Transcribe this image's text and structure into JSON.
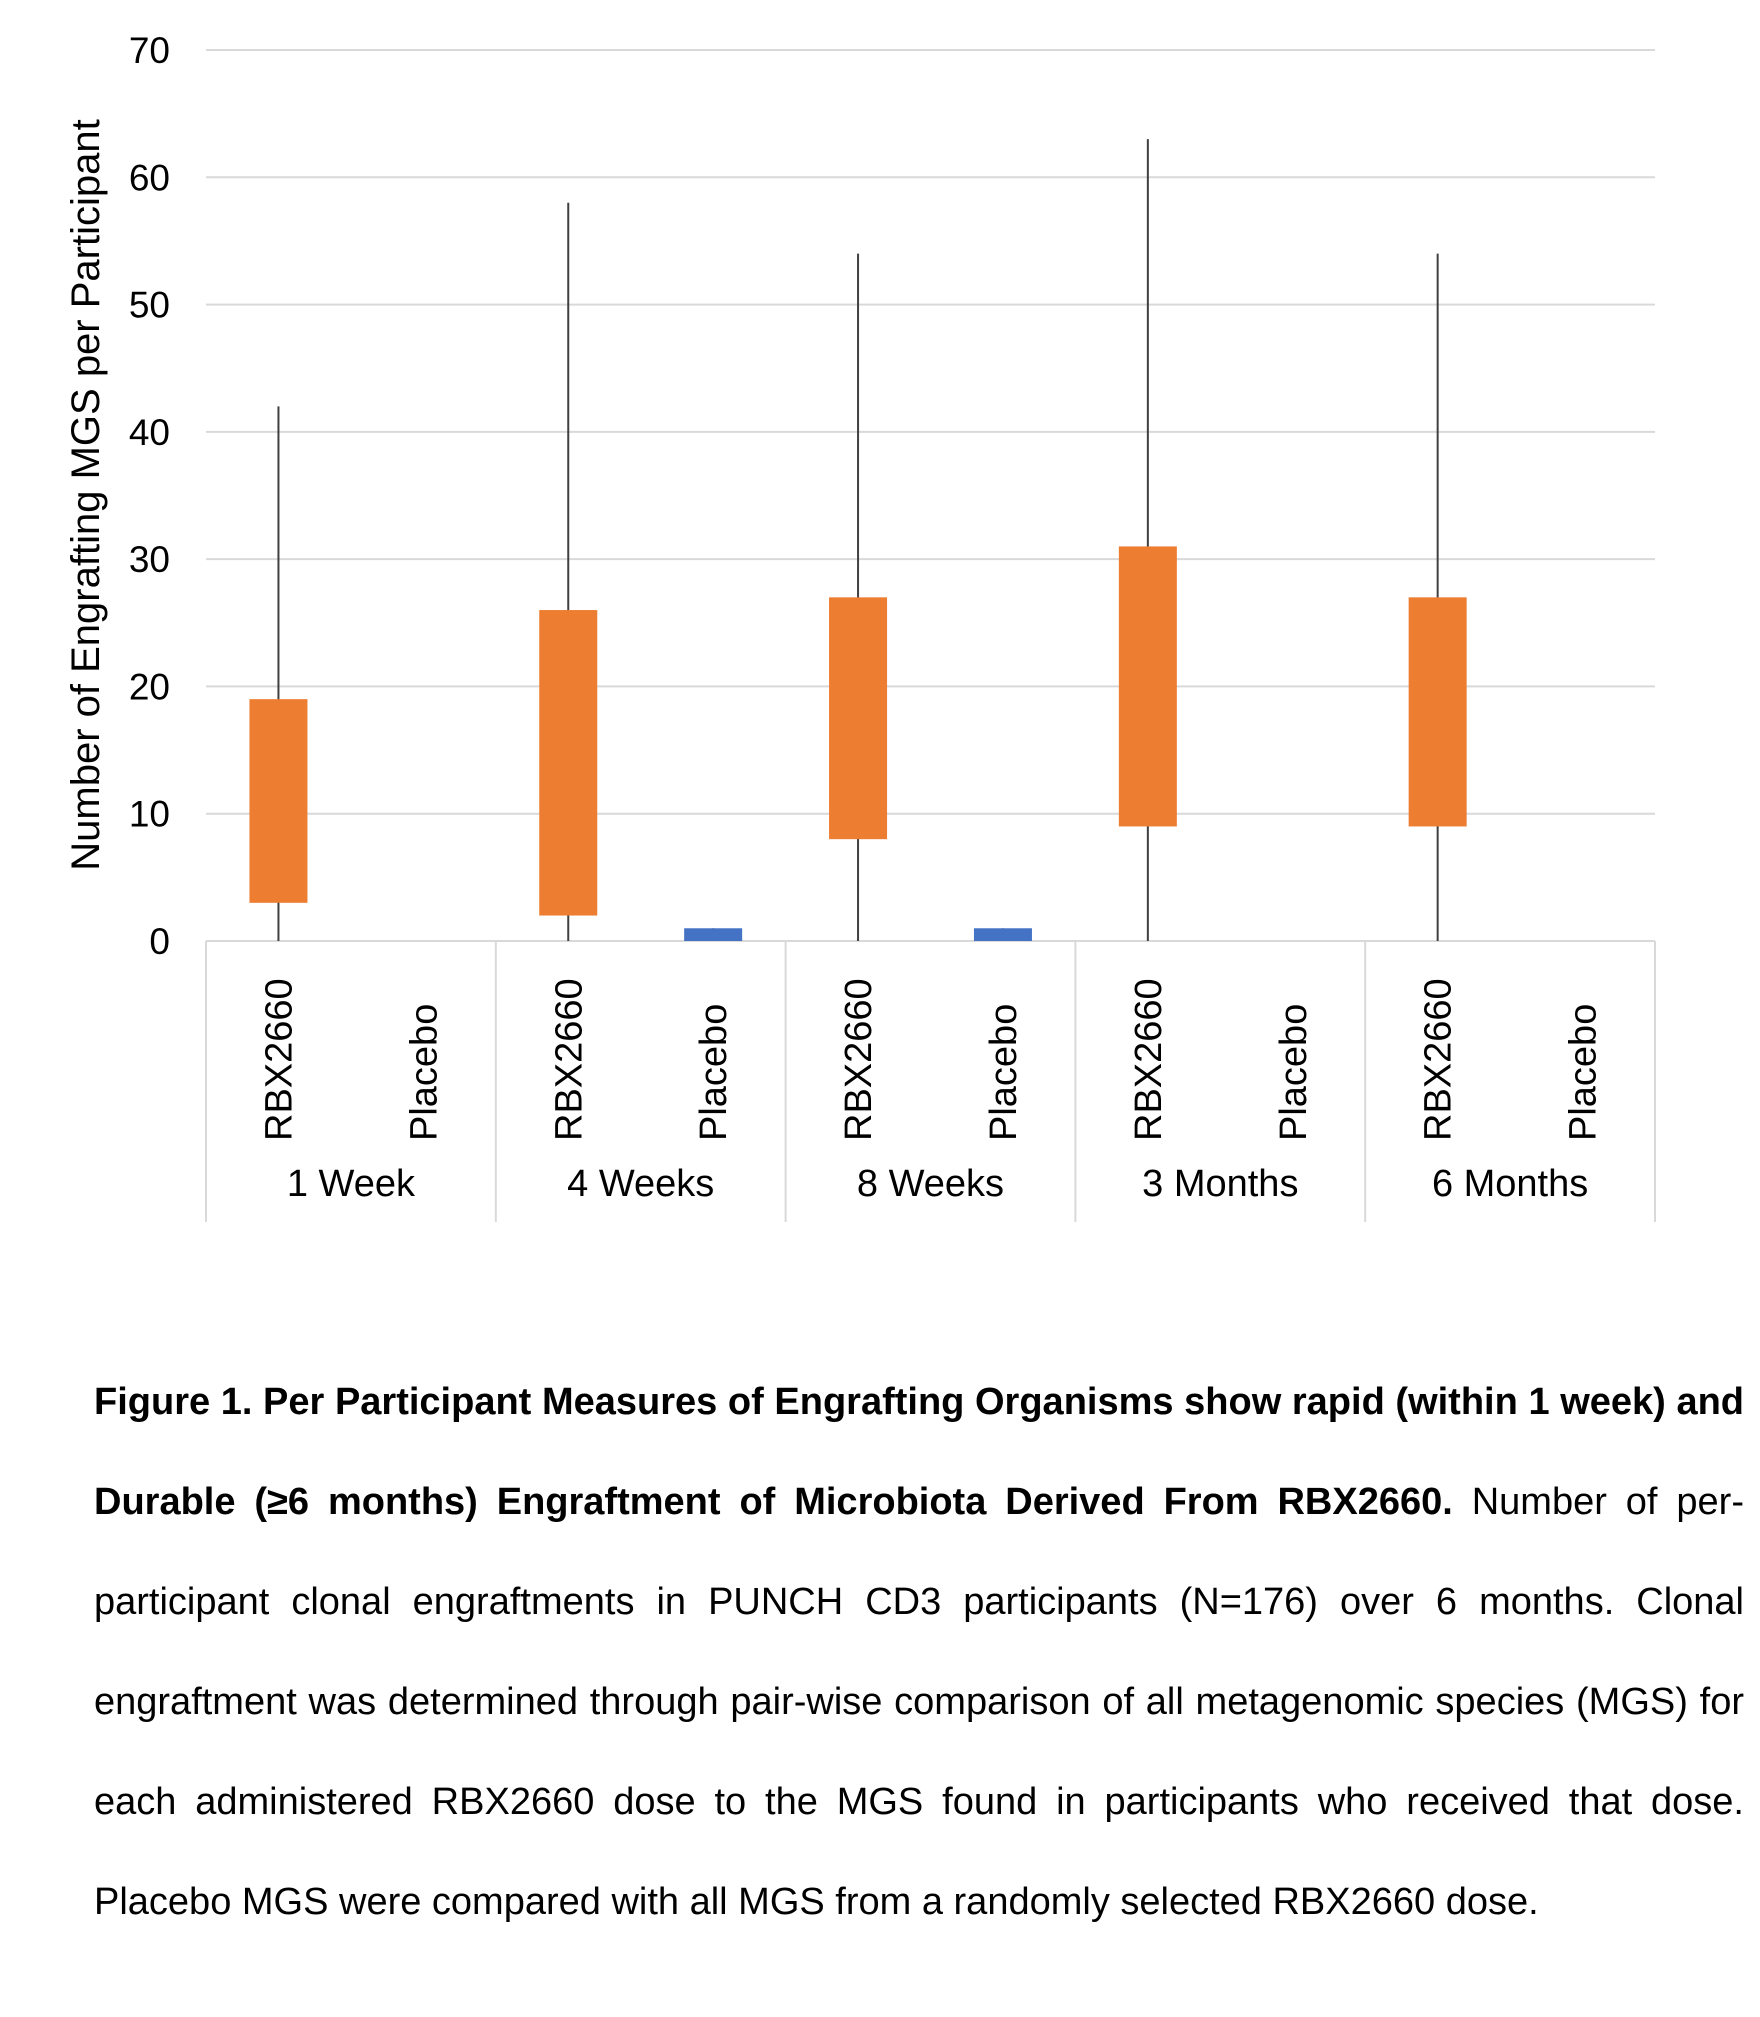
{
  "chart_data": {
    "type": "box",
    "ylabel": "Number of Engrafting MGS per Participant",
    "xlabel": "",
    "ylim": [
      0,
      70
    ],
    "yticks": [
      "0",
      "10",
      "20",
      "30",
      "40",
      "50",
      "60",
      "70"
    ],
    "grid": true,
    "groups": [
      {
        "label": "1 Week",
        "boxes": [
          {
            "label": "RBX2660",
            "min": 0,
            "q1": 3,
            "q3": 19,
            "max": 42,
            "color": "#ED7D31"
          },
          {
            "label": "Placebo",
            "min": 0,
            "q1": 0,
            "q3": 0,
            "max": 0,
            "color": "#4472C4"
          }
        ]
      },
      {
        "label": "4 Weeks",
        "boxes": [
          {
            "label": "RBX2660",
            "min": 0,
            "q1": 2,
            "q3": 26,
            "max": 58,
            "color": "#ED7D31"
          },
          {
            "label": "Placebo",
            "min": 0,
            "q1": 0,
            "q3": 1,
            "max": 1,
            "color": "#4472C4"
          }
        ]
      },
      {
        "label": "8 Weeks",
        "boxes": [
          {
            "label": "RBX2660",
            "min": 0,
            "q1": 8,
            "q3": 27,
            "max": 54,
            "color": "#ED7D31"
          },
          {
            "label": "Placebo",
            "min": 0,
            "q1": 0,
            "q3": 1,
            "max": 1,
            "color": "#4472C4"
          }
        ]
      },
      {
        "label": "3 Months",
        "boxes": [
          {
            "label": "RBX2660",
            "min": 0,
            "q1": 9,
            "q3": 31,
            "max": 63,
            "color": "#ED7D31"
          },
          {
            "label": "Placebo",
            "min": 0,
            "q1": 0,
            "q3": 0,
            "max": 0,
            "color": "#4472C4"
          }
        ]
      },
      {
        "label": "6 Months",
        "boxes": [
          {
            "label": "RBX2660",
            "min": 0,
            "q1": 9,
            "q3": 27,
            "max": 54,
            "color": "#ED7D31"
          },
          {
            "label": "Placebo",
            "min": 0,
            "q1": 0,
            "q3": 0,
            "max": 0,
            "color": "#4472C4"
          }
        ]
      }
    ]
  },
  "caption": {
    "title": "Figure 1. Per Participant Measures of Engrafting Organisms show rapid (within 1 week) and Durable (≥6 months) Engraftment of Microbiota Derived From RBX2660.",
    "body": "Number of per-participant clonal engraftments in PUNCH CD3 participants (N=176) over 6 months. Clonal engraftment was determined through pair-wise comparison of all metagenomic species (MGS) for each administered RBX2660 dose to the MGS found in participants who received that dose. Placebo MGS were compared with all MGS from a randomly selected RBX2660 dose."
  }
}
